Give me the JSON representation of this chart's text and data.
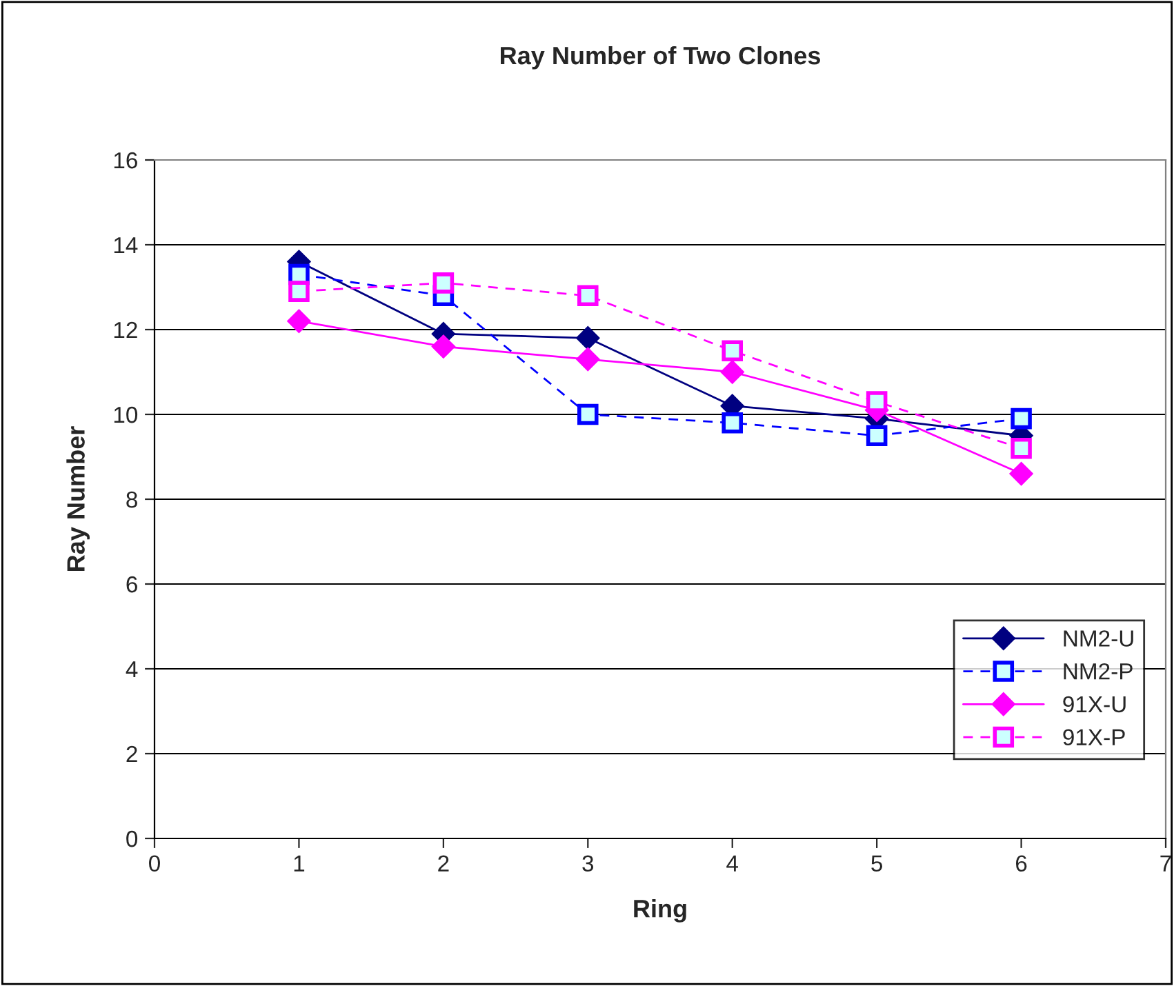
{
  "chart_data": {
    "type": "line",
    "title": "Ray Number of Two Clones",
    "xlabel": "Ring",
    "ylabel": "Ray Number",
    "x": [
      1,
      2,
      3,
      4,
      5,
      6
    ],
    "series": [
      {
        "name": "NM2-U",
        "color": "#000080",
        "values": [
          13.6,
          11.9,
          11.8,
          10.2,
          9.9,
          9.5
        ],
        "marker": "diamond",
        "line_style": "solid"
      },
      {
        "name": "NM2-P",
        "color": "#0000ff",
        "values": [
          13.3,
          12.8,
          10.0,
          9.8,
          9.5,
          9.9
        ],
        "marker": "square",
        "line_style": "dashed"
      },
      {
        "name": "91X-U",
        "color": "#ff00ff",
        "values": [
          12.2,
          11.6,
          11.3,
          11.0,
          10.1,
          8.6
        ],
        "marker": "diamond",
        "line_style": "solid"
      },
      {
        "name": "91X-P",
        "color": "#ff00ff",
        "values": [
          12.9,
          13.1,
          12.8,
          11.5,
          10.3,
          9.2
        ],
        "marker": "square",
        "line_style": "dashed"
      }
    ],
    "xlim": [
      0,
      7
    ],
    "xticks": [
      0,
      1,
      2,
      3,
      4,
      5,
      6,
      7
    ],
    "ylim": [
      0,
      16
    ],
    "yticks": [
      0,
      2,
      4,
      6,
      8,
      10,
      12,
      14,
      16
    ],
    "grid": "y",
    "legend": "bottom right"
  }
}
